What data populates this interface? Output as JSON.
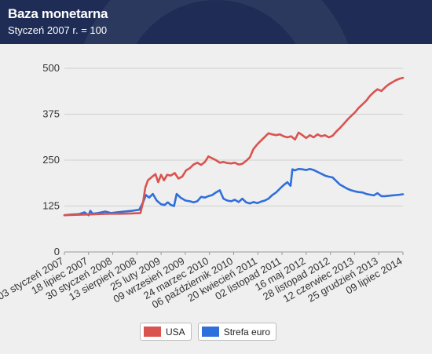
{
  "header": {
    "title": "Baza monetarna",
    "subtitle": "Styczeń 2007 r. = 100"
  },
  "colors": {
    "header_bg": "#1f2d56",
    "usa": "#d9534f",
    "euro": "#2f6fdb",
    "grid": "#cfcfcf"
  },
  "legend": [
    {
      "label": "USA",
      "color": "#d9534f"
    },
    {
      "label": "Strefa euro",
      "color": "#2f6fdb"
    }
  ],
  "chart_data": {
    "type": "line",
    "title": "Baza monetarna",
    "subtitle": "Styczeń 2007 r. = 100",
    "ylim": [
      0,
      500
    ],
    "yticks": [
      0,
      125,
      250,
      375,
      500
    ],
    "grid": true,
    "legend_position": "bottom",
    "xlim": [
      "2007-01-03",
      "2014-07-09"
    ],
    "xtick_labels": [
      {
        "date": "2007-01-03",
        "label": "03 styczeń 2007"
      },
      {
        "date": "2007-07-18",
        "label": "18 lipiec 2007"
      },
      {
        "date": "2008-01-30",
        "label": "30 styczeń 2008"
      },
      {
        "date": "2008-08-13",
        "label": "13 sierpień 2008"
      },
      {
        "date": "2009-02-25",
        "label": "25 luty 2009"
      },
      {
        "date": "2009-09-09",
        "label": "09 wrzesień 2009"
      },
      {
        "date": "2010-03-24",
        "label": "24 marzec 2010"
      },
      {
        "date": "2010-10-06",
        "label": "06 październik 2010"
      },
      {
        "date": "2011-04-20",
        "label": "20 kwiecień 2011"
      },
      {
        "date": "2011-11-02",
        "label": "02 listopad 2011"
      },
      {
        "date": "2012-05-16",
        "label": "16 maj 2012"
      },
      {
        "date": "2012-11-28",
        "label": "28 listopad 2012"
      },
      {
        "date": "2013-06-12",
        "label": "12 czerwiec 2013"
      },
      {
        "date": "2013-12-25",
        "label": "25 grudzień 2013"
      },
      {
        "date": "2014-07-09",
        "label": "09 lipiec 2014"
      }
    ],
    "series": [
      {
        "name": "USA",
        "color": "#d9534f",
        "points": [
          [
            "2007-01-03",
            100
          ],
          [
            "2007-04-01",
            101
          ],
          [
            "2007-07-01",
            102
          ],
          [
            "2007-10-01",
            103
          ],
          [
            "2008-01-01",
            104
          ],
          [
            "2008-04-01",
            104
          ],
          [
            "2008-07-01",
            105
          ],
          [
            "2008-09-10",
            106
          ],
          [
            "2008-10-01",
            135
          ],
          [
            "2008-10-20",
            175
          ],
          [
            "2008-11-10",
            195
          ],
          [
            "2008-12-15",
            205
          ],
          [
            "2009-01-10",
            212
          ],
          [
            "2009-02-01",
            190
          ],
          [
            "2009-02-25",
            210
          ],
          [
            "2009-03-20",
            195
          ],
          [
            "2009-04-15",
            210
          ],
          [
            "2009-05-15",
            208
          ],
          [
            "2009-06-15",
            215
          ],
          [
            "2009-07-15",
            200
          ],
          [
            "2009-08-15",
            205
          ],
          [
            "2009-09-15",
            222
          ],
          [
            "2009-10-15",
            228
          ],
          [
            "2009-11-15",
            238
          ],
          [
            "2009-12-15",
            243
          ],
          [
            "2010-01-15",
            237
          ],
          [
            "2010-02-15",
            245
          ],
          [
            "2010-03-15",
            260
          ],
          [
            "2010-04-15",
            255
          ],
          [
            "2010-05-15",
            250
          ],
          [
            "2010-06-15",
            243
          ],
          [
            "2010-07-15",
            245
          ],
          [
            "2010-08-15",
            242
          ],
          [
            "2010-09-15",
            241
          ],
          [
            "2010-10-15",
            243
          ],
          [
            "2010-11-15",
            238
          ],
          [
            "2010-12-15",
            240
          ],
          [
            "2011-01-15",
            248
          ],
          [
            "2011-02-15",
            258
          ],
          [
            "2011-03-15",
            280
          ],
          [
            "2011-04-15",
            293
          ],
          [
            "2011-05-15",
            303
          ],
          [
            "2011-06-15",
            313
          ],
          [
            "2011-07-15",
            323
          ],
          [
            "2011-08-15",
            320
          ],
          [
            "2011-09-15",
            318
          ],
          [
            "2011-10-15",
            320
          ],
          [
            "2011-11-15",
            315
          ],
          [
            "2011-12-15",
            312
          ],
          [
            "2012-01-15",
            315
          ],
          [
            "2012-02-15",
            306
          ],
          [
            "2012-03-15",
            325
          ],
          [
            "2012-04-15",
            318
          ],
          [
            "2012-05-15",
            310
          ],
          [
            "2012-06-15",
            318
          ],
          [
            "2012-07-15",
            312
          ],
          [
            "2012-08-15",
            320
          ],
          [
            "2012-09-15",
            315
          ],
          [
            "2012-10-15",
            318
          ],
          [
            "2012-11-15",
            312
          ],
          [
            "2012-12-15",
            316
          ],
          [
            "2013-01-15",
            328
          ],
          [
            "2013-02-15",
            338
          ],
          [
            "2013-03-15",
            348
          ],
          [
            "2013-04-15",
            360
          ],
          [
            "2013-05-15",
            370
          ],
          [
            "2013-06-15",
            380
          ],
          [
            "2013-07-15",
            392
          ],
          [
            "2013-08-15",
            402
          ],
          [
            "2013-09-15",
            412
          ],
          [
            "2013-10-15",
            425
          ],
          [
            "2013-11-15",
            435
          ],
          [
            "2013-12-15",
            443
          ],
          [
            "2014-01-15",
            438
          ],
          [
            "2014-02-15",
            448
          ],
          [
            "2014-03-15",
            456
          ],
          [
            "2014-04-15",
            462
          ],
          [
            "2014-05-15",
            468
          ],
          [
            "2014-06-15",
            472
          ],
          [
            "2014-07-09",
            474
          ]
        ]
      },
      {
        "name": "Strefa euro",
        "color": "#2f6fdb",
        "points": [
          [
            "2007-01-03",
            100
          ],
          [
            "2007-03-01",
            102
          ],
          [
            "2007-05-01",
            103
          ],
          [
            "2007-06-15",
            108
          ],
          [
            "2007-07-18",
            100
          ],
          [
            "2007-08-01",
            112
          ],
          [
            "2007-08-20",
            104
          ],
          [
            "2007-10-01",
            106
          ],
          [
            "2007-12-01",
            110
          ],
          [
            "2008-01-15",
            106
          ],
          [
            "2008-03-01",
            108
          ],
          [
            "2008-05-01",
            110
          ],
          [
            "2008-07-01",
            112
          ],
          [
            "2008-09-01",
            115
          ],
          [
            "2008-10-01",
            135
          ],
          [
            "2008-10-25",
            155
          ],
          [
            "2008-11-20",
            148
          ],
          [
            "2008-12-20",
            158
          ],
          [
            "2009-01-20",
            140
          ],
          [
            "2009-02-25",
            130
          ],
          [
            "2009-03-25",
            128
          ],
          [
            "2009-04-20",
            135
          ],
          [
            "2009-05-15",
            128
          ],
          [
            "2009-06-10",
            125
          ],
          [
            "2009-07-01",
            158
          ],
          [
            "2009-08-01",
            148
          ],
          [
            "2009-09-10",
            140
          ],
          [
            "2009-10-15",
            138
          ],
          [
            "2009-11-15",
            135
          ],
          [
            "2009-12-15",
            138
          ],
          [
            "2010-01-15",
            150
          ],
          [
            "2010-02-15",
            148
          ],
          [
            "2010-03-15",
            152
          ],
          [
            "2010-04-15",
            155
          ],
          [
            "2010-05-15",
            162
          ],
          [
            "2010-06-15",
            168
          ],
          [
            "2010-07-15",
            145
          ],
          [
            "2010-08-15",
            140
          ],
          [
            "2010-09-15",
            138
          ],
          [
            "2010-10-15",
            142
          ],
          [
            "2010-11-15",
            136
          ],
          [
            "2010-12-15",
            145
          ],
          [
            "2011-01-15",
            135
          ],
          [
            "2011-02-15",
            132
          ],
          [
            "2011-03-15",
            136
          ],
          [
            "2011-04-15",
            133
          ],
          [
            "2011-05-15",
            137
          ],
          [
            "2011-06-15",
            140
          ],
          [
            "2011-07-15",
            145
          ],
          [
            "2011-08-15",
            155
          ],
          [
            "2011-09-15",
            162
          ],
          [
            "2011-10-15",
            172
          ],
          [
            "2011-11-15",
            182
          ],
          [
            "2011-12-15",
            190
          ],
          [
            "2012-01-10",
            180
          ],
          [
            "2012-01-25",
            225
          ],
          [
            "2012-02-15",
            222
          ],
          [
            "2012-03-15",
            226
          ],
          [
            "2012-04-15",
            225
          ],
          [
            "2012-05-15",
            223
          ],
          [
            "2012-06-15",
            226
          ],
          [
            "2012-07-15",
            223
          ],
          [
            "2012-08-15",
            218
          ],
          [
            "2012-09-15",
            213
          ],
          [
            "2012-10-15",
            208
          ],
          [
            "2012-11-15",
            205
          ],
          [
            "2012-12-15",
            203
          ],
          [
            "2013-01-15",
            193
          ],
          [
            "2013-02-15",
            183
          ],
          [
            "2013-03-15",
            178
          ],
          [
            "2013-04-15",
            172
          ],
          [
            "2013-05-15",
            168
          ],
          [
            "2013-06-15",
            165
          ],
          [
            "2013-07-15",
            163
          ],
          [
            "2013-08-15",
            162
          ],
          [
            "2013-09-15",
            158
          ],
          [
            "2013-10-15",
            156
          ],
          [
            "2013-11-15",
            154
          ],
          [
            "2013-12-15",
            160
          ],
          [
            "2014-01-15",
            152
          ],
          [
            "2014-02-15",
            152
          ],
          [
            "2014-03-15",
            153
          ],
          [
            "2014-04-15",
            154
          ],
          [
            "2014-05-15",
            155
          ],
          [
            "2014-06-15",
            156
          ],
          [
            "2014-07-09",
            157
          ]
        ]
      }
    ]
  }
}
